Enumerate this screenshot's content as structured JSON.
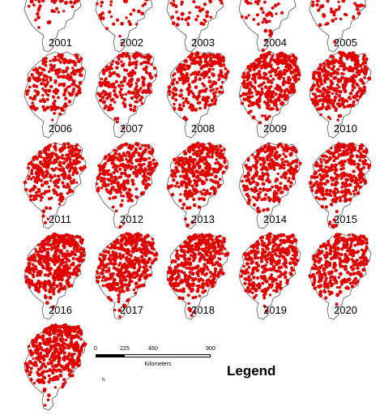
{
  "figure": {
    "point_color": "#e00000",
    "outline_color": "#555555",
    "panels": [
      {
        "year": "2001",
        "fire_density": 0.1,
        "cropped_top": true
      },
      {
        "year": "2002",
        "fire_density": 0.1,
        "cropped_top": true
      },
      {
        "year": "2003",
        "fire_density": 0.12,
        "cropped_top": true
      },
      {
        "year": "2004",
        "fire_density": 0.1,
        "cropped_top": true
      },
      {
        "year": "2005",
        "fire_density": 0.12,
        "cropped_top": true
      },
      {
        "year": "2006",
        "fire_density": 0.4
      },
      {
        "year": "2007",
        "fire_density": 0.38
      },
      {
        "year": "2008",
        "fire_density": 0.55
      },
      {
        "year": "2009",
        "fire_density": 0.78
      },
      {
        "year": "2010",
        "fire_density": 0.72
      },
      {
        "year": "2011",
        "fire_density": 0.62
      },
      {
        "year": "2012",
        "fire_density": 0.62
      },
      {
        "year": "2013",
        "fire_density": 0.66
      },
      {
        "year": "2014",
        "fire_density": 0.55
      },
      {
        "year": "2015",
        "fire_density": 0.68
      },
      {
        "year": "2016",
        "fire_density": 0.92
      },
      {
        "year": "2017",
        "fire_density": 0.9
      },
      {
        "year": "2018",
        "fire_density": 0.85
      },
      {
        "year": "2019",
        "fire_density": 0.72
      },
      {
        "year": "2020",
        "fire_density": 0.64
      },
      {
        "year": "",
        "fire_density": 0.95,
        "cropped_bottom": true
      }
    ]
  },
  "scale_bar": {
    "ticks": [
      "0",
      "225",
      "450",
      "900"
    ],
    "unit": "Kilometers"
  },
  "legend": {
    "title": "Legend",
    "north_label": "N"
  }
}
